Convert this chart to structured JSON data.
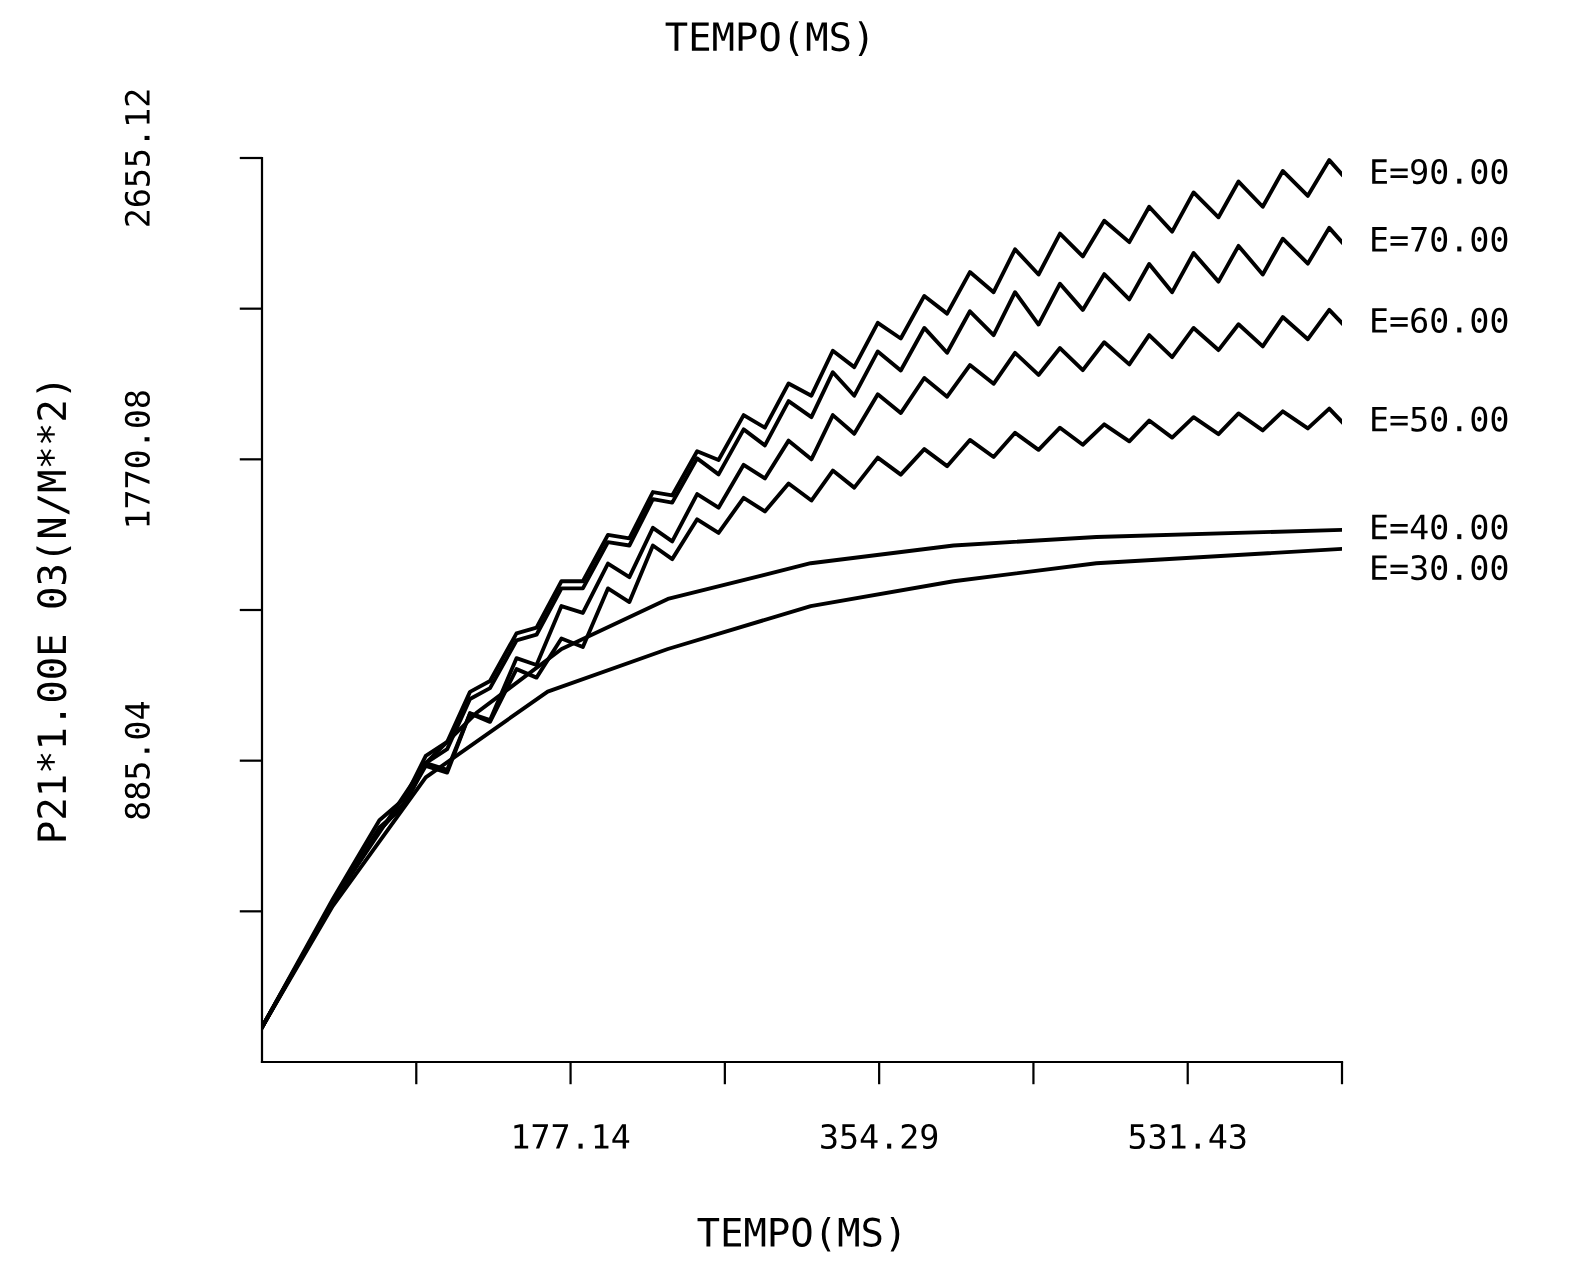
{
  "chart_data": {
    "type": "line",
    "title": "TEMPO(MS)",
    "xlabel": "TEMPO(MS)",
    "ylabel": "P21*1.00E 03(N/M**2)",
    "xlim": [
      0,
      620
    ],
    "ylim": [
      0,
      2655.12
    ],
    "xticks": [
      {
        "value": 88.57,
        "label": null
      },
      177.14,
      {
        "value": 265.71,
        "label": null
      },
      354.29,
      {
        "value": 442.86,
        "label": null
      },
      531.43,
      {
        "value": 620,
        "label": null
      }
    ],
    "yticks": [
      {
        "value": 442.52,
        "label": null
      },
      885.04,
      {
        "value": 1327.56,
        "label": null
      },
      1770.08,
      {
        "value": 2212.6,
        "label": null
      },
      2655.12
    ],
    "grid": false,
    "legend": false,
    "marker": "none",
    "line_style": "solid",
    "series": [
      {
        "name": "E=90.00",
        "color": "#000000",
        "x": [
          0,
          40.7,
          67.4,
          81.7,
          94,
          106.3,
          119.4,
          130.9,
          146.1,
          157.6,
          171.9,
          184.2,
          198.6,
          210.9,
          224.4,
          235.5,
          249.8,
          262.1,
          276.5,
          288.7,
          302.3,
          315.4,
          327.7,
          340,
          353.5,
          366.7,
          380.2,
          393.3,
          406.4,
          420,
          432.3,
          445.8,
          458.1,
          471.2,
          483.5,
          497.9,
          509.3,
          522.5,
          534.8,
          549.1,
          560.6,
          574.5,
          586,
          600.4,
          612.7,
          620
        ],
        "values": [
          102,
          479,
          710,
          773,
          899,
          940,
          1087,
          1119,
          1259,
          1276,
          1412,
          1412,
          1548,
          1538,
          1674,
          1664,
          1794,
          1768,
          1900,
          1863,
          1993,
          1957,
          2089,
          2041,
          2171,
          2125,
          2250,
          2198,
          2320,
          2261,
          2387,
          2313,
          2433,
          2366,
          2471,
          2408,
          2512,
          2439,
          2554,
          2481,
          2586,
          2512,
          2617,
          2544,
          2649,
          2607
        ]
      },
      {
        "name": "E=70.00",
        "color": "#000000",
        "x": [
          0,
          40.7,
          67.4,
          81.7,
          94,
          106.3,
          119.4,
          130.9,
          146.1,
          157.6,
          171.9,
          184.2,
          198.6,
          210.9,
          224.4,
          235.5,
          249.8,
          262.1,
          276.5,
          288.7,
          302.3,
          315.4,
          327.7,
          340,
          353.5,
          366.7,
          380.2,
          393.3,
          406.4,
          420,
          432.3,
          445.8,
          458.1,
          471.2,
          483.5,
          497.9,
          509.3,
          522.5,
          534.8,
          549.1,
          560.6,
          574.5,
          586,
          600.4,
          612.7,
          620
        ],
        "values": [
          102,
          469,
          689,
          752,
          878,
          919,
          1066,
          1098,
          1238,
          1255,
          1391,
          1391,
          1527,
          1517,
          1653,
          1643,
          1773,
          1726,
          1858,
          1811,
          1941,
          1894,
          2026,
          1957,
          2087,
          2031,
          2156,
          2083,
          2205,
          2135,
          2261,
          2166,
          2286,
          2209,
          2314,
          2240,
          2344,
          2261,
          2376,
          2292,
          2397,
          2313,
          2418,
          2345,
          2450,
          2408
        ]
      },
      {
        "name": "E=60.00",
        "color": "#000000",
        "x": [
          0,
          40.7,
          67.4,
          81.7,
          94,
          106.3,
          119.4,
          130.9,
          146.1,
          157.6,
          171.9,
          184.2,
          198.6,
          210.9,
          224.4,
          235.5,
          249.8,
          262.1,
          276.5,
          288.7,
          302.3,
          315.4,
          327.7,
          340,
          353.5,
          366.7,
          380.2,
          393.3,
          406.4,
          420,
          432.3,
          445.8,
          458.1,
          471.2,
          483.5,
          497.9,
          509.3,
          522.5,
          534.8,
          549.1,
          560.6,
          574.5,
          586,
          600.4,
          612.7,
          620
        ],
        "values": [
          102,
          469,
          680,
          760,
          878,
          858,
          1024,
          1004,
          1186,
          1166,
          1339,
          1319,
          1464,
          1424,
          1569,
          1529,
          1668,
          1628,
          1754,
          1714,
          1825,
          1770,
          1900,
          1845,
          1961,
          1906,
          2009,
          1954,
          2047,
          1992,
          2083,
          2018,
          2097,
          2032,
          2114,
          2049,
          2135,
          2070,
          2156,
          2091,
          2167,
          2102,
          2188,
          2123,
          2209,
          2170
        ]
      },
      {
        "name": "E=50.00",
        "color": "#000000",
        "x": [
          0,
          40.7,
          67.4,
          81.7,
          94,
          106.3,
          119.4,
          130.9,
          146.1,
          157.6,
          171.9,
          184.2,
          198.6,
          210.9,
          224.4,
          235.5,
          249.8,
          262.1,
          276.5,
          288.7,
          302.3,
          315.4,
          327.7,
          340,
          353.5,
          366.7,
          380.2,
          393.3,
          406.4,
          420,
          432.3,
          445.8,
          458.1,
          471.2,
          483.5,
          497.9,
          509.3,
          522.5,
          534.8,
          549.1,
          560.6,
          574.5,
          586,
          600.4,
          612.7,
          620
        ],
        "values": [
          102,
          469,
          680,
          760,
          870,
          850,
          1024,
          999,
          1154,
          1129,
          1244,
          1219,
          1391,
          1351,
          1517,
          1477,
          1594,
          1554,
          1657,
          1617,
          1699,
          1649,
          1737,
          1687,
          1775,
          1725,
          1800,
          1750,
          1827,
          1777,
          1848,
          1798,
          1863,
          1813,
          1873,
          1823,
          1884,
          1834,
          1894,
          1844,
          1905,
          1855,
          1911,
          1861,
          1919,
          1880
        ]
      },
      {
        "name": "E=40.00",
        "color": "#000000",
        "x": [
          0,
          40.7,
          94,
          123,
          172,
          233,
          315,
          397,
          479,
          620
        ],
        "values": [
          102,
          470,
          878,
          1025,
          1213,
          1360,
          1465,
          1517,
          1542,
          1563
        ]
      },
      {
        "name": "E=30.00",
        "color": "#000000",
        "x": [
          0,
          40.6,
          94,
          164,
          233,
          315,
          397,
          479,
          620
        ],
        "values": [
          102,
          458,
          836,
          1088,
          1213,
          1339,
          1412,
          1465,
          1507
        ]
      }
    ]
  }
}
